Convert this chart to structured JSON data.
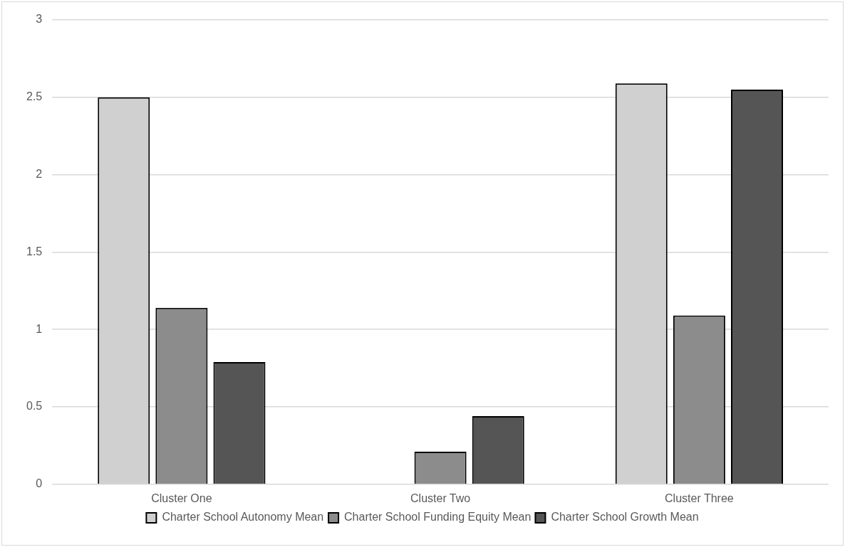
{
  "chart_data": {
    "type": "bar",
    "categories": [
      "Cluster One",
      "Cluster Two",
      "Cluster Three"
    ],
    "series": [
      {
        "name": "Charter School Autonomy Mean",
        "color": "#d0d0d0",
        "values": [
          2.5,
          null,
          2.59
        ]
      },
      {
        "name": "Charter School Funding Equity Mean",
        "color": "#8c8c8c",
        "values": [
          1.14,
          0.21,
          1.09
        ]
      },
      {
        "name": "Charter School Growth Mean",
        "color": "#555555",
        "values": [
          0.79,
          0.44,
          2.55
        ]
      }
    ],
    "ylim": [
      0,
      3
    ],
    "yticks": [
      0,
      0.5,
      1,
      1.5,
      2,
      2.5,
      3
    ],
    "grid": "y",
    "legend": "bottom"
  }
}
